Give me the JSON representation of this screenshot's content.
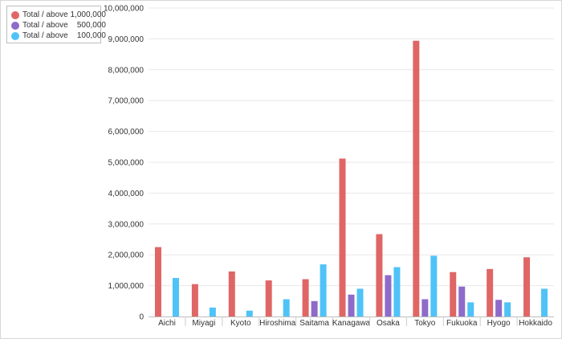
{
  "chart_data": {
    "type": "bar",
    "categories": [
      "Aichi",
      "Miyagi",
      "Kyoto",
      "Hiroshima",
      "Saitama",
      "Kanagawa",
      "Osaka",
      "Tokyo",
      "Fukuoka",
      "Hyogo",
      "Hokkaido"
    ],
    "series": [
      {
        "name": "Total / above 1,000,000",
        "color": "#e06666",
        "values": [
          2250000,
          1050000,
          1460000,
          1170000,
          1210000,
          5120000,
          2670000,
          8940000,
          1440000,
          1540000,
          1920000
        ]
      },
      {
        "name": "Total / above    500,000",
        "color": "#8e6bc9",
        "values": [
          null,
          null,
          null,
          null,
          500000,
          710000,
          1340000,
          560000,
          970000,
          540000,
          null
        ]
      },
      {
        "name": "Total / above    100,000",
        "color": "#4fc3f7",
        "values": [
          1250000,
          290000,
          190000,
          560000,
          1690000,
          900000,
          1600000,
          1970000,
          460000,
          460000,
          900000
        ]
      }
    ],
    "y_ticks": [
      "0",
      "1,000,000",
      "2,000,000",
      "3,000,000",
      "4,000,000",
      "5,000,000",
      "6,000,000",
      "7,000,000",
      "8,000,000",
      "9,000,000",
      "10,000,000"
    ],
    "ylim": [
      0,
      10000000
    ],
    "grid": true,
    "legend_position": "top-left",
    "title": "",
    "xlabel": "",
    "ylabel": ""
  }
}
